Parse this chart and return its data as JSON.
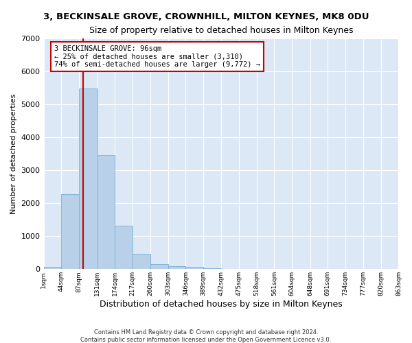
{
  "title": "3, BECKINSALE GROVE, CROWNHILL, MILTON KEYNES, MK8 0DU",
  "subtitle": "Size of property relative to detached houses in Milton Keynes",
  "xlabel": "Distribution of detached houses by size in Milton Keynes",
  "ylabel": "Number of detached properties",
  "bar_color": "#b8d0e8",
  "bar_edge_color": "#7aafd4",
  "background_color": "#dce8f5",
  "grid_color": "#ffffff",
  "fig_background": "#ffffff",
  "annotation_box_color": "#ffffff",
  "annotation_box_edge": "#cc0000",
  "annotation_line_color": "#cc0000",
  "footer_line1": "Contains HM Land Registry data © Crown copyright and database right 2024.",
  "footer_line2": "Contains public sector information licensed under the Open Government Licence v3.0.",
  "bin_edges": [
    1,
    44,
    87,
    131,
    174,
    217,
    260,
    303,
    346,
    389,
    432,
    475,
    518,
    561,
    604,
    648,
    691,
    734,
    777,
    820,
    863
  ],
  "bin_labels": [
    "1sqm",
    "44sqm",
    "87sqm",
    "131sqm",
    "174sqm",
    "217sqm",
    "260sqm",
    "303sqm",
    "346sqm",
    "389sqm",
    "432sqm",
    "475sqm",
    "518sqm",
    "561sqm",
    "604sqm",
    "648sqm",
    "691sqm",
    "734sqm",
    "777sqm",
    "820sqm",
    "863sqm"
  ],
  "bar_values": [
    75,
    2280,
    5470,
    3450,
    1310,
    460,
    160,
    95,
    60,
    30,
    5,
    5,
    0,
    0,
    0,
    0,
    0,
    0,
    0,
    0
  ],
  "ylim": [
    0,
    7000
  ],
  "yticks": [
    0,
    1000,
    2000,
    3000,
    4000,
    5000,
    6000,
    7000
  ],
  "annotation_line1": "3 BECKINSALE GROVE: 96sqm",
  "annotation_line2": "← 25% of detached houses are smaller (3,310)",
  "annotation_line3": "74% of semi-detached houses are larger (9,772) →",
  "vline_position": 96
}
